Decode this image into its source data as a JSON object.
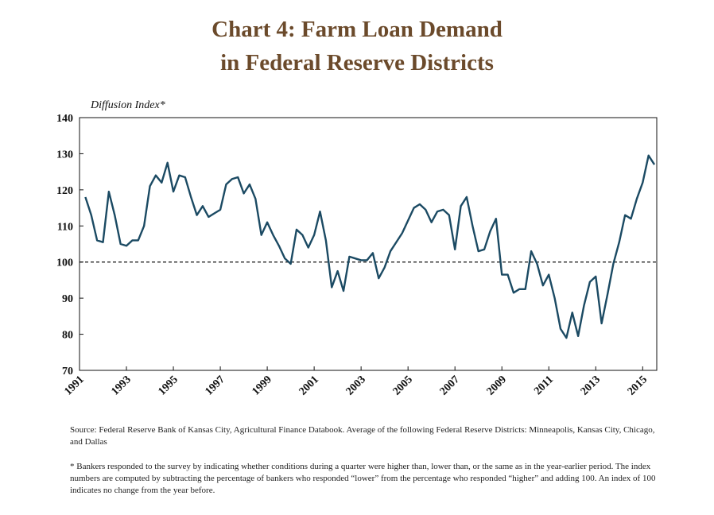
{
  "chart_data": {
    "type": "line",
    "title": "Chart 4: Farm Loan Demand",
    "subtitle": "in Federal Reserve Districts",
    "y_label": "Diffusion Index*",
    "x": [
      1991.25,
      1991.5,
      1991.75,
      1992,
      1992.25,
      1992.5,
      1992.75,
      1993,
      1993.25,
      1993.5,
      1993.75,
      1994,
      1994.25,
      1994.5,
      1994.75,
      1995,
      1995.25,
      1995.5,
      1995.75,
      1996,
      1996.25,
      1996.5,
      1996.75,
      1997,
      1997.25,
      1997.5,
      1997.75,
      1998,
      1998.25,
      1998.5,
      1998.75,
      1999,
      1999.25,
      1999.5,
      1999.75,
      2000,
      2000.25,
      2000.5,
      2000.75,
      2001,
      2001.25,
      2001.5,
      2001.75,
      2002,
      2002.25,
      2002.5,
      2002.75,
      2003,
      2003.25,
      2003.5,
      2003.75,
      2004,
      2004.25,
      2004.5,
      2004.75,
      2005,
      2005.25,
      2005.5,
      2005.75,
      2006,
      2006.25,
      2006.5,
      2006.75,
      2007,
      2007.25,
      2007.5,
      2007.75,
      2008,
      2008.25,
      2008.5,
      2008.75,
      2009,
      2009.25,
      2009.5,
      2009.75,
      2010,
      2010.25,
      2010.5,
      2010.75,
      2011,
      2011.25,
      2011.5,
      2011.75,
      2012,
      2012.25,
      2012.5,
      2012.75,
      2013,
      2013.25,
      2013.5,
      2013.75,
      2014,
      2014.25,
      2014.5,
      2014.75,
      2015,
      2015.25,
      2015.5
    ],
    "values": [
      118,
      113,
      106,
      105.5,
      119.5,
      113,
      105,
      104.5,
      106,
      106,
      110,
      121,
      124,
      122,
      127.5,
      119.5,
      124,
      123.5,
      118,
      113,
      115.5,
      112.5,
      113.5,
      114.5,
      121.5,
      123,
      123.5,
      119,
      121.5,
      117.5,
      107.5,
      111,
      107.5,
      104.5,
      101,
      99.5,
      109,
      107.5,
      104,
      107.5,
      114,
      106,
      93,
      97.5,
      92,
      101.5,
      101,
      100.5,
      100.5,
      102.5,
      95.5,
      98.5,
      103,
      105.5,
      108,
      111.5,
      115,
      116,
      114.5,
      111,
      114,
      114.5,
      113,
      103.5,
      115.5,
      118,
      110,
      103,
      103.5,
      108.5,
      112,
      96.5,
      96.5,
      91.5,
      92.5,
      92.5,
      103,
      99.5,
      93.5,
      96.5,
      90,
      81.5,
      79,
      86,
      79.5,
      88,
      94.5,
      96,
      83,
      91,
      99.5,
      105.5,
      113,
      112,
      117.5,
      122,
      129.5,
      127
    ],
    "color": "#1b4a63",
    "reference_line": 100,
    "xlim": [
      1991,
      2015.6
    ],
    "xticks": [
      1991,
      1993,
      1995,
      1997,
      1999,
      2001,
      2003,
      2005,
      2007,
      2009,
      2011,
      2013,
      2015
    ],
    "ylim": [
      70,
      140
    ],
    "yticks": [
      70,
      80,
      90,
      100,
      110,
      120,
      130,
      140
    ],
    "grid": false
  },
  "source": "Source: Federal Reserve Bank of Kansas City, Agricultural Finance Databook. Average of the following Federal Reserve Districts: Minneapolis, Kansas City, Chicago, and Dallas",
  "footnote": "* Bankers responded to the survey by indicating whether conditions during a quarter were higher than, lower than, or the same as in the year-earlier period. The index numbers are computed by subtracting the percentage of bankers who responded “lower” from the percentage who responded “higher” and adding 100. An index of 100 indicates no change from the year before."
}
